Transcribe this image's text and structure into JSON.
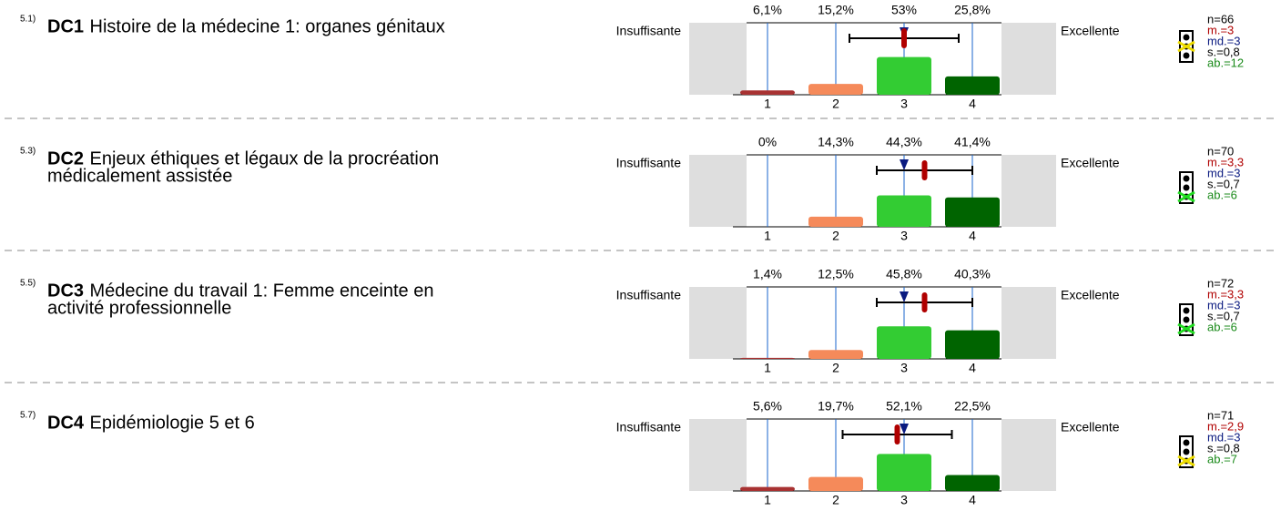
{
  "scale": [
    "1",
    "2",
    "3",
    "4"
  ],
  "left_label": "Insuffisante",
  "right_label": "Excellente",
  "colors": [
    "#a83232",
    "#f58a5a",
    "#33cc33",
    "#006400"
  ],
  "items": [
    {
      "number": "5.1)",
      "code": "DC1",
      "title": [
        "Histoire de la médecine 1: organes génitaux"
      ],
      "values": [
        6.1,
        15.2,
        53,
        25.8
      ],
      "value_labels": [
        "6,1%",
        "15,2%",
        "53%",
        "25,8%"
      ],
      "n": "n=66",
      "mean": 3,
      "mean_label": "m.=3",
      "median": 3,
      "median_label": "md.=3",
      "sd": 0.8,
      "sd_label": "s.=0,8",
      "abstention": "ab.=12"
    },
    {
      "number": "5.3)",
      "code": "DC2",
      "title": [
        "Enjeux éthiques et légaux de la procréation",
        "médicalement assistée"
      ],
      "values": [
        0,
        14.3,
        44.3,
        41.4
      ],
      "value_labels": [
        "0%",
        "14,3%",
        "44,3%",
        "41,4%"
      ],
      "n": "n=70",
      "mean": 3.3,
      "mean_label": "m.=3,3",
      "median": 3,
      "median_label": "md.=3",
      "sd": 0.7,
      "sd_label": "s.=0,7",
      "abstention": "ab.=6"
    },
    {
      "number": "5.5)",
      "code": "DC3",
      "title": [
        "Médecine du travail 1: Femme enceinte en",
        "activité professionnelle"
      ],
      "values": [
        1.4,
        12.5,
        45.8,
        40.3
      ],
      "value_labels": [
        "1,4%",
        "12,5%",
        "45,8%",
        "40,3%"
      ],
      "n": "n=72",
      "mean": 3.3,
      "mean_label": "m.=3,3",
      "median": 3,
      "median_label": "md.=3",
      "sd": 0.7,
      "sd_label": "s.=0,7",
      "abstention": "ab.=6"
    },
    {
      "number": "5.7)",
      "code": "DC4",
      "title": [
        "Epidémiologie 5 et 6"
      ],
      "values": [
        5.6,
        19.7,
        52.1,
        22.5
      ],
      "value_labels": [
        "5,6%",
        "19,7%",
        "52,1%",
        "22,5%"
      ],
      "n": "n=71",
      "mean": 2.9,
      "mean_label": "m.=2,9",
      "median": 3,
      "median_label": "md.=3",
      "sd": 0.8,
      "sd_label": "s.=0,8",
      "abstention": "ab.=7"
    }
  ]
}
